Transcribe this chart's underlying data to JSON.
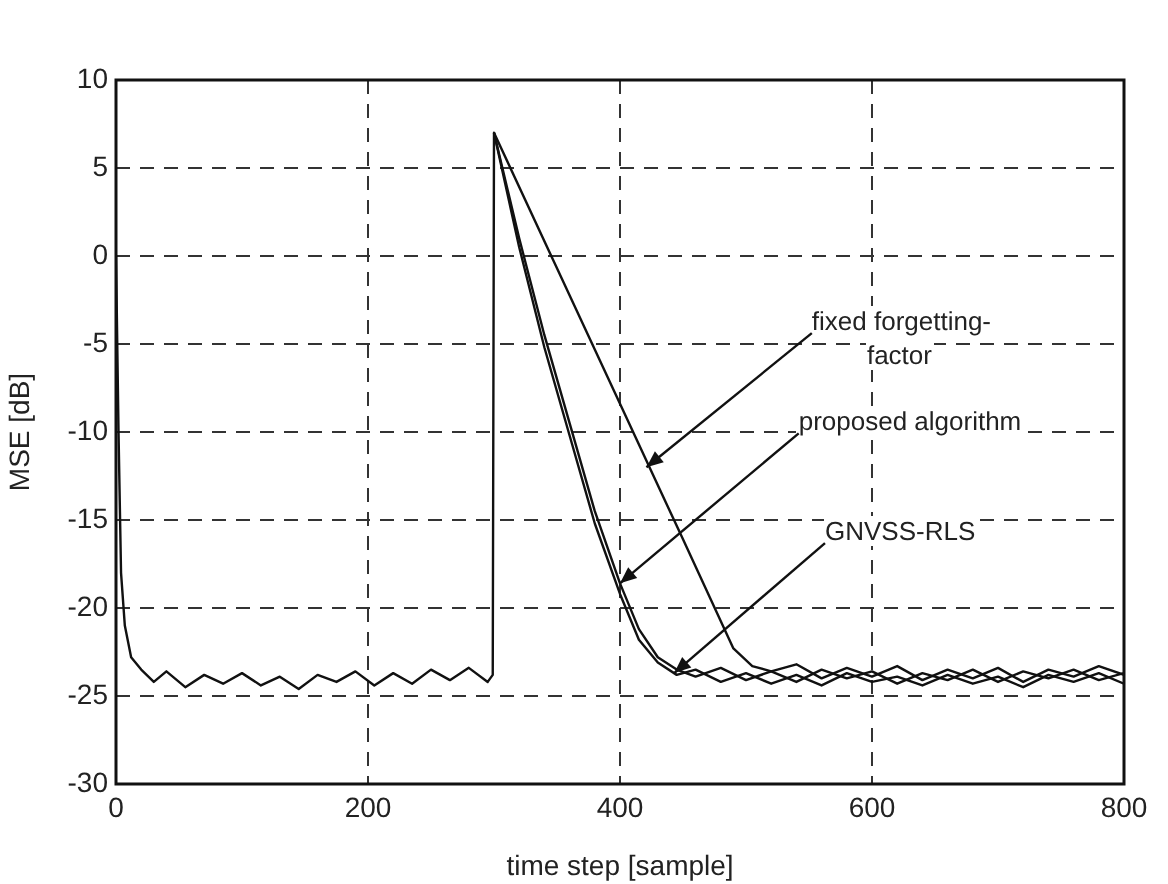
{
  "chart_data": {
    "type": "line",
    "xlabel": "time step [sample]",
    "ylabel": "MSE [dB]",
    "xlim": [
      0,
      800
    ],
    "xticks": [
      0,
      200,
      400,
      600,
      800
    ],
    "ylim": [
      -30,
      10
    ],
    "yticks": [
      -30,
      -25,
      -20,
      -15,
      -10,
      -5,
      0,
      5,
      10
    ],
    "grid": true,
    "legend": false,
    "marker": "none",
    "line_style": "solid",
    "series": [
      {
        "color": "#111111",
        "x": [
          0,
          2,
          4,
          7,
          12,
          20,
          30,
          40,
          55,
          70,
          85,
          100,
          115,
          130,
          145,
          160,
          175,
          190,
          205,
          220,
          235,
          250,
          265,
          280,
          295,
          299,
          300,
          350,
          400,
          450,
          490,
          505,
          520,
          540,
          560,
          580,
          600,
          620,
          640,
          660,
          680,
          700,
          720,
          740,
          760,
          780,
          800
        ],
        "values": [
          0,
          -10,
          -18,
          -21,
          -22.8,
          -23.5,
          -24.2,
          -23.6,
          -24.5,
          -23.8,
          -24.3,
          -23.7,
          -24.4,
          -23.9,
          -24.6,
          -23.8,
          -24.2,
          -23.6,
          -24.4,
          -23.7,
          -24.3,
          -23.5,
          -24.1,
          -23.4,
          -24.2,
          -23.8,
          7,
          -0.7,
          -8.4,
          -16.1,
          -22.3,
          -23.3,
          -23.6,
          -23.2,
          -24,
          -23.4,
          -23.9,
          -23.3,
          -24.1,
          -23.5,
          -24,
          -23.4,
          -24.2,
          -23.5,
          -23.9,
          -23.3,
          -23.8
        ]
      },
      {
        "color": "#111111",
        "x": [
          300,
          320,
          340,
          360,
          380,
          400,
          415,
          430,
          445,
          460,
          480,
          500,
          520,
          540,
          560,
          580,
          600,
          620,
          640,
          660,
          680,
          700,
          720,
          740,
          760,
          780,
          800
        ],
        "values": [
          7,
          1,
          -4.5,
          -9.5,
          -14.5,
          -18.6,
          -21.2,
          -22.8,
          -23.5,
          -23.9,
          -23.4,
          -24.1,
          -23.6,
          -24.2,
          -23.5,
          -24,
          -23.6,
          -24.3,
          -23.7,
          -24.1,
          -23.5,
          -24.2,
          -23.6,
          -24,
          -23.5,
          -24.1,
          -23.7
        ]
      },
      {
        "color": "#111111",
        "x": [
          300,
          320,
          340,
          360,
          380,
          400,
          415,
          430,
          445,
          460,
          480,
          500,
          520,
          540,
          560,
          580,
          600,
          620,
          640,
          660,
          680,
          700,
          720,
          740,
          760,
          780,
          800
        ],
        "values": [
          7,
          0.5,
          -5.2,
          -10.2,
          -15.2,
          -19.2,
          -21.8,
          -23.1,
          -23.8,
          -23.5,
          -24.2,
          -23.7,
          -24.3,
          -23.8,
          -24.4,
          -23.7,
          -24.2,
          -23.9,
          -24.4,
          -23.8,
          -24.3,
          -23.9,
          -24.5,
          -23.8,
          -24.2,
          -23.7,
          -24.3
        ]
      }
    ],
    "annotations": [
      {
        "text": "fixed forgetting-factor",
        "x": 421,
        "y": -12
      },
      {
        "text": "proposed algorithm",
        "x": 400,
        "y": -18.6
      },
      {
        "text": "GNVSS-RLS",
        "x": 443,
        "y": -23.7
      }
    ]
  }
}
